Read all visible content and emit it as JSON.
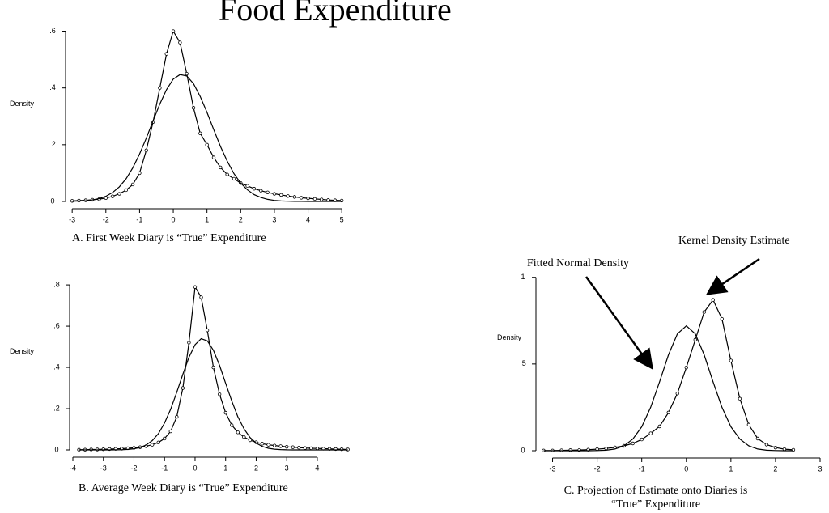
{
  "title": "Food Expenditure",
  "chart_data": [
    {
      "type": "line",
      "caption": "A. First Week Diary is “True” Expenditure",
      "ylabel": "Density",
      "xlim": [
        -3.1,
        5.5
      ],
      "ylim": [
        0,
        0.63
      ],
      "xticks": [
        -3,
        -2,
        -1,
        0,
        1,
        2,
        3,
        4,
        5
      ],
      "yticks": [
        0,
        {
          "value": 0.2,
          "label": ".2"
        },
        {
          "value": 0.4,
          "label": ".4"
        },
        {
          "value": 0.6,
          "label": ".6"
        }
      ],
      "x": [
        -3,
        -2.8,
        -2.6,
        -2.4,
        -2.2,
        -2,
        -1.8,
        -1.6,
        -1.4,
        -1.2,
        -1,
        -0.8,
        -0.6,
        -0.4,
        -0.2,
        0,
        0.2,
        0.4,
        0.6,
        0.8,
        1,
        1.2,
        1.4,
        1.6,
        1.8,
        2,
        2.2,
        2.4,
        2.6,
        2.8,
        3,
        3.2,
        3.4,
        3.6,
        3.8,
        4,
        4.2,
        4.4,
        4.6,
        4.8,
        5
      ],
      "series": [
        {
          "color": "#000000",
          "marker": true,
          "values": [
            0.002,
            0.003,
            0.004,
            0.006,
            0.008,
            0.012,
            0.018,
            0.027,
            0.04,
            0.06,
            0.1,
            0.18,
            0.28,
            0.4,
            0.52,
            0.6,
            0.56,
            0.45,
            0.33,
            0.24,
            0.2,
            0.155,
            0.12,
            0.095,
            0.08,
            0.065,
            0.055,
            0.045,
            0.038,
            0.032,
            0.027,
            0.023,
            0.019,
            0.016,
            0.013,
            0.011,
            0.009,
            0.007,
            0.005,
            0.004,
            0.003
          ]
        },
        {
          "color": "#000000",
          "marker": false,
          "values": [
            0.0006,
            0.0013,
            0.0027,
            0.0053,
            0.0101,
            0.0183,
            0.0316,
            0.0517,
            0.08,
            0.119,
            0.167,
            0.223,
            0.284,
            0.343,
            0.394,
            0.431,
            0.447,
            0.442,
            0.415,
            0.37,
            0.314,
            0.253,
            0.194,
            0.142,
            0.098,
            0.065,
            0.041,
            0.024,
            0.014,
            0.0074,
            0.0038,
            0.0018,
            0.0009,
            0.0004,
            0.0002,
            0.0001,
            0,
            0,
            0,
            0,
            0
          ]
        }
      ]
    },
    {
      "type": "line",
      "caption": "B. Average Week Diary is “True” Expenditure",
      "ylabel": "Density",
      "xlim": [
        -4,
        5.3
      ],
      "ylim": [
        0,
        0.82
      ],
      "xticks": [
        -4,
        -3,
        -2,
        -1,
        0,
        1,
        2,
        3,
        4
      ],
      "yticks": [
        0,
        {
          "value": 0.2,
          "label": ".2"
        },
        {
          "value": 0.4,
          "label": ".4"
        },
        {
          "value": 0.6,
          "label": ".6"
        },
        {
          "value": 0.8,
          "label": ".8"
        }
      ],
      "x": [
        -3.8,
        -3.6,
        -3.4,
        -3.2,
        -3,
        -2.8,
        -2.6,
        -2.4,
        -2.2,
        -2,
        -1.8,
        -1.6,
        -1.4,
        -1.2,
        -1,
        -0.8,
        -0.6,
        -0.4,
        -0.2,
        0,
        0.2,
        0.4,
        0.6,
        0.8,
        1,
        1.2,
        1.4,
        1.6,
        1.8,
        2,
        2.2,
        2.4,
        2.6,
        2.8,
        3,
        3.2,
        3.4,
        3.6,
        3.8,
        4,
        4.2,
        4.4,
        4.6,
        4.8,
        5
      ],
      "series": [
        {
          "color": "#000000",
          "marker": true,
          "values": [
            0.001,
            0.001,
            0.002,
            0.002,
            0.003,
            0.004,
            0.005,
            0.006,
            0.008,
            0.01,
            0.013,
            0.018,
            0.025,
            0.036,
            0.055,
            0.09,
            0.16,
            0.3,
            0.52,
            0.79,
            0.74,
            0.58,
            0.4,
            0.27,
            0.18,
            0.12,
            0.085,
            0.062,
            0.047,
            0.037,
            0.03,
            0.025,
            0.021,
            0.018,
            0.015,
            0.013,
            0.011,
            0.009,
            0.008,
            0.007,
            0.006,
            0.005,
            0.004,
            0.003,
            0.002
          ]
        },
        {
          "color": "#000000",
          "marker": false,
          "values": [
            0,
            0,
            0,
            0,
            0,
            0,
            0.0003,
            0.0009,
            0.0023,
            0.0053,
            0.0116,
            0.024,
            0.045,
            0.079,
            0.13,
            0.197,
            0.279,
            0.367,
            0.449,
            0.51,
            0.539,
            0.529,
            0.483,
            0.41,
            0.323,
            0.237,
            0.161,
            0.102,
            0.06,
            0.033,
            0.017,
            0.0079,
            0.0035,
            0.0014,
            0.0005,
            0,
            0,
            0,
            0,
            0,
            0,
            0,
            0,
            0,
            0
          ]
        }
      ]
    },
    {
      "type": "line",
      "caption": "C. Projection of Estimate onto Diaries is “True” Expenditure",
      "ylabel": "Density",
      "annotations": [
        "Kernel Density Estimate",
        "Fitted Normal Density"
      ],
      "xlim": [
        -3.3,
        3
      ],
      "ylim": [
        0,
        1.05
      ],
      "xticks": [
        -3,
        -2,
        -1,
        0,
        1,
        2,
        3
      ],
      "yticks": [
        0,
        {
          "value": 0.5,
          "label": ".5"
        },
        1
      ],
      "x": [
        -3.2,
        -3,
        -2.8,
        -2.6,
        -2.4,
        -2.2,
        -2,
        -1.8,
        -1.6,
        -1.4,
        -1.2,
        -1,
        -0.8,
        -0.6,
        -0.4,
        -0.2,
        0,
        0.2,
        0.4,
        0.6,
        0.8,
        1,
        1.2,
        1.4,
        1.6,
        1.8,
        2,
        2.2,
        2.4
      ],
      "series": [
        {
          "color": "#000000",
          "marker": true,
          "values": [
            0.001,
            0.001,
            0.002,
            0.003,
            0.004,
            0.006,
            0.009,
            0.013,
            0.019,
            0.028,
            0.042,
            0.065,
            0.1,
            0.14,
            0.22,
            0.33,
            0.48,
            0.64,
            0.8,
            0.87,
            0.76,
            0.52,
            0.3,
            0.15,
            0.07,
            0.035,
            0.018,
            0.009,
            0.005
          ]
        },
        {
          "color": "#000000",
          "marker": false,
          "values": [
            0,
            0,
            0,
            0,
            0,
            0,
            0.001,
            0.003,
            0.01,
            0.028,
            0.067,
            0.138,
            0.25,
            0.397,
            0.553,
            0.674,
            0.72,
            0.674,
            0.553,
            0.397,
            0.25,
            0.138,
            0.067,
            0.028,
            0.01,
            0.003,
            0.001,
            0,
            0
          ]
        }
      ]
    }
  ]
}
